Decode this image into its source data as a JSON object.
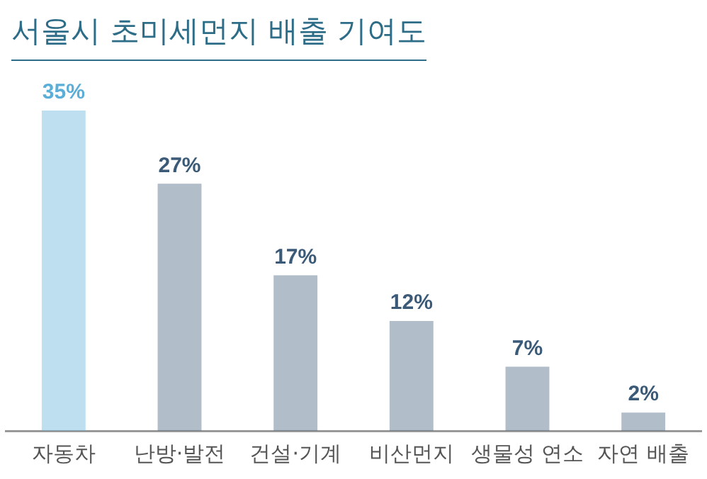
{
  "chart_data": {
    "type": "bar",
    "title": "서울시 초미세먼지 배출 기여도",
    "categories": [
      "자동차",
      "난방·발전",
      "건설·기계",
      "비산먼지",
      "생물성 연소",
      "자연 배출"
    ],
    "values": [
      35,
      27,
      17,
      12,
      7,
      2
    ],
    "colors": [
      "#5aaed8",
      "#3b5a78",
      "#3b5a78",
      "#3b5a78",
      "#3b5a78",
      "#3b5a78"
    ],
    "value_labels": [
      "35%",
      "27%",
      "17%",
      "12%",
      "7%",
      "2%"
    ],
    "grid": false,
    "legend": false
  }
}
